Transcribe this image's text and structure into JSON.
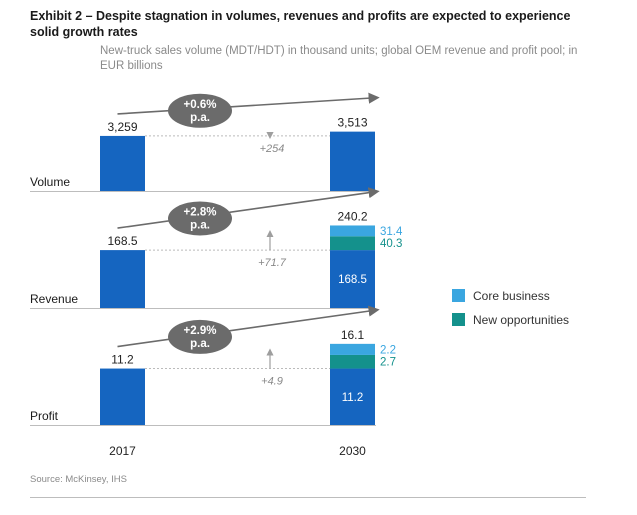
{
  "header": {
    "title": "Exhibit 2 – Despite stagnation in volumes, revenues and profits are expected to experience solid growth rates",
    "subtitle": "New-truck sales volume (MDT/HDT) in thousand units; global OEM revenue and profit pool; in EUR billions"
  },
  "footer": {
    "source": "Source: McKinsey, IHS"
  },
  "colors": {
    "total": "#1565c0",
    "core_business": "#3aa6e0",
    "new_opportunities": "#14918c",
    "bubble": "#6b6b6b",
    "connector": "#9e9e9e",
    "rule": "#bdbdbd"
  },
  "legend": [
    {
      "name": "Core business",
      "color": "#3aa6e0"
    },
    {
      "name": "New opportunities",
      "color": "#14918c"
    }
  ],
  "chart_data": {
    "type": "bar",
    "categories": [
      "2017",
      "2030"
    ],
    "panels": [
      {
        "label": "Volume",
        "values": [
          3259,
          3513
        ],
        "value_labels": [
          "3,259",
          "3,513"
        ],
        "delta_label": "+254",
        "growth_label": [
          "+0.6%",
          "p.a."
        ],
        "segments_2030": []
      },
      {
        "label": "Revenue",
        "values": [
          168.5,
          240.2
        ],
        "value_labels": [
          "168.5",
          "240.2"
        ],
        "delta_label": "+71.7",
        "growth_label": [
          "+2.8%",
          "p.a."
        ],
        "segments_2030": [
          {
            "name": "Base",
            "value": 168.5,
            "label": "168.5",
            "color_key": "total"
          },
          {
            "name": "New opportunities",
            "value": 40.3,
            "label": "40.3",
            "color_key": "new_opportunities"
          },
          {
            "name": "Core business",
            "value": 31.4,
            "label": "31.4",
            "color_key": "core_business"
          }
        ]
      },
      {
        "label": "Profit",
        "values": [
          11.2,
          16.1
        ],
        "value_labels": [
          "11.2",
          "16.1"
        ],
        "delta_label": "+4.9",
        "growth_label": [
          "+2.9%",
          "p.a."
        ],
        "segments_2030": [
          {
            "name": "Base",
            "value": 11.2,
            "label": "11.2",
            "color_key": "total"
          },
          {
            "name": "New opportunities",
            "value": 2.7,
            "label": "2.7",
            "color_key": "new_opportunities"
          },
          {
            "name": "Core business",
            "value": 2.2,
            "label": "2.2",
            "color_key": "core_business"
          }
        ]
      }
    ]
  }
}
